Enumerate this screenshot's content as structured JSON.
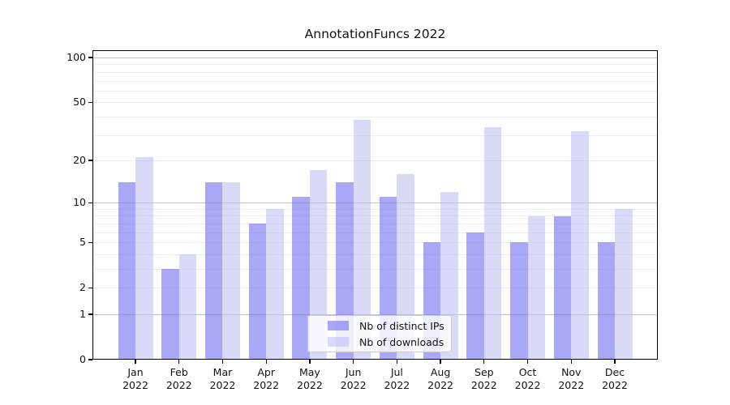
{
  "figure": {
    "title": "AnnotationFuncs 2022"
  },
  "chart_data": {
    "type": "bar",
    "title": "AnnotationFuncs 2022",
    "categories": [
      "Jan",
      "Feb",
      "Mar",
      "Apr",
      "May",
      "Jun",
      "Jul",
      "Aug",
      "Sep",
      "Oct",
      "Nov",
      "Dec"
    ],
    "x_tick_second_line": "2022",
    "series": [
      {
        "name": "Nb of distinct IPs",
        "color": "#a8a8f6",
        "color_rgba": "rgba(122,122,243,0.65)",
        "values": [
          14,
          3,
          14,
          7,
          11,
          14,
          11,
          5,
          6,
          5,
          8,
          5
        ]
      },
      {
        "name": "Nb of downloads",
        "color": "#d9d9f8",
        "color_rgba": "rgba(189,189,242,0.57)",
        "values": [
          21,
          4,
          14,
          9,
          17,
          38,
          16,
          12,
          34,
          8,
          32,
          9
        ]
      }
    ],
    "yscale": "log1p",
    "ylim": [
      0,
      112
    ],
    "yticks": [
      0,
      1,
      2,
      5,
      10,
      20,
      50,
      100
    ],
    "grid": "horizontal major (1,10,100) + minor (2-9, 20-90)",
    "legend_position": "lower center"
  }
}
